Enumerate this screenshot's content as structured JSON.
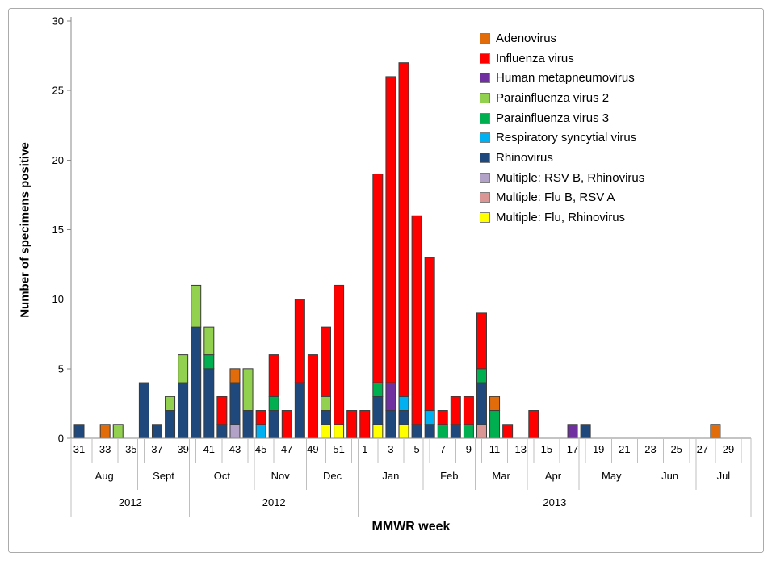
{
  "figure": {
    "y_title": "Number of specimens positive",
    "x_title": "MMWR week"
  },
  "axes": {
    "y_ticks": [
      0,
      5,
      10,
      15,
      20,
      25,
      30
    ]
  },
  "chart_data": {
    "type": "bar",
    "stacked": true,
    "title": "",
    "xlabel": "MMWR week",
    "ylabel": "Number of specimens positive",
    "ylim": [
      0,
      30
    ],
    "ytick_step": 5,
    "grid": false,
    "legend_position": "top-right-inside",
    "series": [
      {
        "key": "adenovirus",
        "label": "Adenovirus",
        "color": "#E36C0A"
      },
      {
        "key": "influenza",
        "label": "Influenza virus",
        "color": "#FF0000"
      },
      {
        "key": "hmpv",
        "label": "Human metapneumovirus",
        "color": "#7030A0"
      },
      {
        "key": "piv2",
        "label": "Parainfluenza virus 2",
        "color": "#92D050"
      },
      {
        "key": "piv3",
        "label": "Parainfluenza virus 3",
        "color": "#00B050"
      },
      {
        "key": "rsv",
        "label": "Respiratory syncytial virus",
        "color": "#00B0F0"
      },
      {
        "key": "rhinovirus",
        "label": "Rhinovirus",
        "color": "#1F497D"
      },
      {
        "key": "multi_rsvb_rhino",
        "label": "Multiple: RSV B, Rhinovirus",
        "color": "#B2A2C7"
      },
      {
        "key": "multi_flub_rsva",
        "label": "Multiple: Flu B, RSV A",
        "color": "#D99694"
      },
      {
        "key": "multi_flu_rhino",
        "label": "Multiple: Flu, Rhinovirus",
        "color": "#FFFF00"
      }
    ],
    "stack_order_bottom_to_top": [
      "multi_flu_rhino",
      "multi_flub_rsva",
      "multi_rsvb_rhino",
      "rhinovirus",
      "rsv",
      "piv3",
      "piv2",
      "hmpv",
      "influenza",
      "adenovirus"
    ],
    "weeks": [
      {
        "week": "31",
        "year": "2012",
        "segments": {
          "rhinovirus": 1
        }
      },
      {
        "week": "32",
        "year": "2012",
        "segments": {}
      },
      {
        "week": "33",
        "year": "2012",
        "segments": {
          "adenovirus": 1
        }
      },
      {
        "week": "34",
        "year": "2012",
        "segments": {
          "piv2": 1
        }
      },
      {
        "week": "35",
        "year": "2012",
        "segments": {}
      },
      {
        "week": "36",
        "year": "2012",
        "segments": {
          "rhinovirus": 4
        }
      },
      {
        "week": "37",
        "year": "2012",
        "segments": {
          "rhinovirus": 1
        }
      },
      {
        "week": "38",
        "year": "2012",
        "segments": {
          "rhinovirus": 2,
          "piv2": 1
        }
      },
      {
        "week": "39",
        "year": "2012",
        "segments": {
          "rhinovirus": 4,
          "piv2": 2
        }
      },
      {
        "week": "40",
        "year": "2012",
        "segments": {
          "rhinovirus": 8,
          "piv2": 3
        }
      },
      {
        "week": "41",
        "year": "2012",
        "segments": {
          "rhinovirus": 5,
          "piv3": 1,
          "piv2": 2
        }
      },
      {
        "week": "42",
        "year": "2012",
        "segments": {
          "rhinovirus": 1,
          "influenza": 2
        }
      },
      {
        "week": "43",
        "year": "2012",
        "segments": {
          "multi_rsvb_rhino": 1,
          "rhinovirus": 3,
          "adenovirus": 1
        }
      },
      {
        "week": "44",
        "year": "2012",
        "segments": {
          "rhinovirus": 2,
          "piv2": 3
        }
      },
      {
        "week": "45",
        "year": "2012",
        "segments": {
          "rsv": 1,
          "influenza": 1
        }
      },
      {
        "week": "46",
        "year": "2012",
        "segments": {
          "rhinovirus": 2,
          "piv3": 1,
          "influenza": 3
        }
      },
      {
        "week": "47",
        "year": "2012",
        "segments": {
          "influenza": 2
        }
      },
      {
        "week": "48",
        "year": "2012",
        "segments": {
          "rhinovirus": 4,
          "influenza": 6
        }
      },
      {
        "week": "49",
        "year": "2012",
        "segments": {
          "influenza": 6
        }
      },
      {
        "week": "50",
        "year": "2012",
        "segments": {
          "multi_flu_rhino": 1,
          "rhinovirus": 1,
          "piv2": 1,
          "influenza": 5
        }
      },
      {
        "week": "51",
        "year": "2012",
        "segments": {
          "multi_flu_rhino": 1,
          "influenza": 10
        }
      },
      {
        "week": "52",
        "year": "2012",
        "segments": {
          "influenza": 2
        }
      },
      {
        "week": "1",
        "year": "2013",
        "segments": {
          "influenza": 2
        }
      },
      {
        "week": "2",
        "year": "2013",
        "segments": {
          "multi_flu_rhino": 1,
          "rhinovirus": 2,
          "piv3": 1,
          "influenza": 15
        }
      },
      {
        "week": "3",
        "year": "2013",
        "segments": {
          "rhinovirus": 2,
          "hmpv": 2,
          "influenza": 22
        }
      },
      {
        "week": "4",
        "year": "2013",
        "segments": {
          "multi_flu_rhino": 1,
          "rhinovirus": 1,
          "rsv": 1,
          "influenza": 24
        }
      },
      {
        "week": "5",
        "year": "2013",
        "segments": {
          "rhinovirus": 1,
          "influenza": 15
        }
      },
      {
        "week": "6",
        "year": "2013",
        "segments": {
          "rhinovirus": 1,
          "rsv": 1,
          "influenza": 11
        }
      },
      {
        "week": "7",
        "year": "2013",
        "segments": {
          "piv3": 1,
          "influenza": 1
        }
      },
      {
        "week": "8",
        "year": "2013",
        "segments": {
          "rhinovirus": 1,
          "influenza": 2
        }
      },
      {
        "week": "9",
        "year": "2013",
        "segments": {
          "piv3": 1,
          "influenza": 2
        }
      },
      {
        "week": "10",
        "year": "2013",
        "segments": {
          "multi_flub_rsva": 1,
          "rhinovirus": 3,
          "piv3": 1,
          "influenza": 4
        }
      },
      {
        "week": "11",
        "year": "2013",
        "segments": {
          "piv3": 2,
          "adenovirus": 1
        }
      },
      {
        "week": "12",
        "year": "2013",
        "segments": {
          "influenza": 1
        }
      },
      {
        "week": "13",
        "year": "2013",
        "segments": {}
      },
      {
        "week": "14",
        "year": "2013",
        "segments": {
          "influenza": 2
        }
      },
      {
        "week": "15",
        "year": "2013",
        "segments": {}
      },
      {
        "week": "16",
        "year": "2013",
        "segments": {}
      },
      {
        "week": "17",
        "year": "2013",
        "segments": {
          "hmpv": 1
        }
      },
      {
        "week": "18",
        "year": "2013",
        "segments": {
          "rhinovirus": 1
        }
      },
      {
        "week": "19",
        "year": "2013",
        "segments": {}
      },
      {
        "week": "20",
        "year": "2013",
        "segments": {}
      },
      {
        "week": "21",
        "year": "2013",
        "segments": {}
      },
      {
        "week": "22",
        "year": "2013",
        "segments": {}
      },
      {
        "week": "23",
        "year": "2013",
        "segments": {}
      },
      {
        "week": "24",
        "year": "2013",
        "segments": {}
      },
      {
        "week": "25",
        "year": "2013",
        "segments": {}
      },
      {
        "week": "26",
        "year": "2013",
        "segments": {}
      },
      {
        "week": "27",
        "year": "2013",
        "segments": {}
      },
      {
        "week": "28",
        "year": "2013",
        "segments": {
          "adenovirus": 1
        }
      },
      {
        "week": "29",
        "year": "2013",
        "segments": {}
      }
    ],
    "month_groups": [
      {
        "label": "Aug",
        "from": 0,
        "to": 4
      },
      {
        "label": "Sept",
        "from": 5,
        "to": 8
      },
      {
        "label": "Oct",
        "from": 9,
        "to": 13
      },
      {
        "label": "Nov",
        "from": 14,
        "to": 17
      },
      {
        "label": "Dec",
        "from": 18,
        "to": 21
      },
      {
        "label": "Jan",
        "from": 22,
        "to": 26
      },
      {
        "label": "Feb",
        "from": 27,
        "to": 30
      },
      {
        "label": "Mar",
        "from": 31,
        "to": 34
      },
      {
        "label": "Apr",
        "from": 35,
        "to": 38
      },
      {
        "label": "May",
        "from": 39,
        "to": 43
      },
      {
        "label": "Jun",
        "from": 44,
        "to": 47
      },
      {
        "label": "Jul",
        "from": 48,
        "to": 50
      }
    ],
    "year_groups": [
      {
        "label": "2012",
        "from": 0,
        "to": 8
      },
      {
        "label": "2012",
        "from": 9,
        "to": 21
      },
      {
        "label": "2013",
        "from": 22,
        "to": 50
      }
    ]
  }
}
